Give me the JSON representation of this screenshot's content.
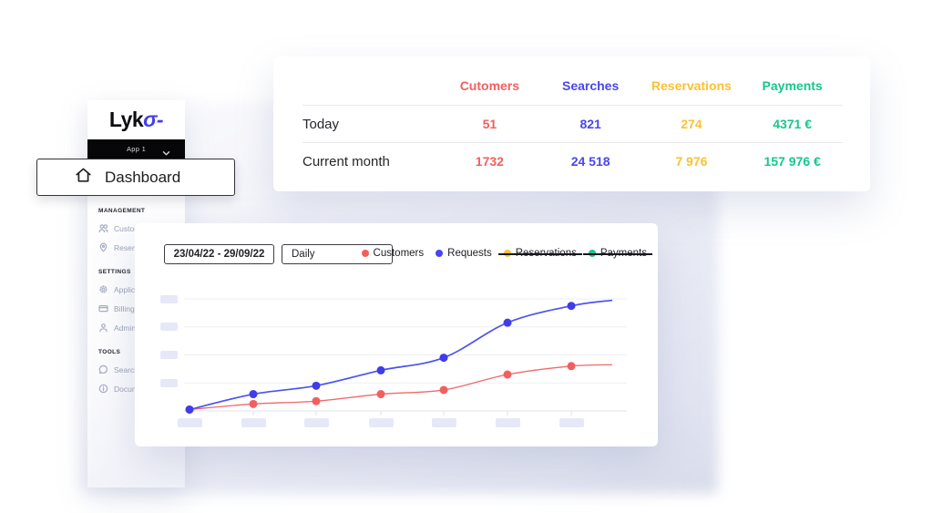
{
  "brand": {
    "name": "Lyko",
    "logo_prefix": "Lyk",
    "logo_accent": "σ-"
  },
  "app_selector": {
    "label": "App 1",
    "icon": "chevron-down-icon"
  },
  "dashboard_menu": {
    "label": "Dashboard",
    "icon": "home-icon"
  },
  "sidebar": {
    "sections": [
      {
        "header": "MANAGEMENT",
        "items": [
          {
            "label": "Customers",
            "icon": "users-icon"
          },
          {
            "label": "Reservations",
            "icon": "pin-icon"
          }
        ]
      },
      {
        "header": "SETTINGS",
        "items": [
          {
            "label": "Application",
            "icon": "gear-icon"
          },
          {
            "label": "Billing",
            "icon": "card-icon"
          },
          {
            "label": "Administration",
            "icon": "user-icon"
          }
        ]
      },
      {
        "header": "TOOLS",
        "items": [
          {
            "label": "Search",
            "icon": "chat-icon"
          },
          {
            "label": "Documentation",
            "icon": "info-icon"
          }
        ]
      }
    ]
  },
  "stats_card": {
    "columns": [
      {
        "label": "Cutomers",
        "color": "#f25f5f"
      },
      {
        "label": "Searches",
        "color": "#4946ef"
      },
      {
        "label": "Reservations",
        "color": "#fdc033"
      },
      {
        "label": "Payments",
        "color": "#17c689"
      }
    ],
    "rows": [
      {
        "label": "Today",
        "values": [
          "51",
          "821",
          "274",
          "4371 €"
        ]
      },
      {
        "label": "Current month",
        "values": [
          "1732",
          "24 518",
          "7 976",
          "157 976 €"
        ]
      }
    ]
  },
  "chart_card": {
    "date_range": "23/04/22 - 29/09/22",
    "granularity": "Daily",
    "legend": [
      {
        "label": "Customers",
        "color": "#f25f5f",
        "struck": false
      },
      {
        "label": "Requests",
        "color": "#4946ef",
        "struck": false
      },
      {
        "label": "Reservations",
        "color": "#fdc033",
        "struck": true
      },
      {
        "label": "Payments",
        "color": "#17c689",
        "struck": true
      }
    ]
  },
  "chart_data": {
    "type": "line",
    "title": "",
    "x": [
      1,
      2,
      3,
      4,
      5,
      6,
      7
    ],
    "x_tick_labels": [
      "",
      "",
      "",
      "",
      "",
      "",
      ""
    ],
    "y_tick_labels": [
      "",
      "",
      "",
      ""
    ],
    "note": "axis tick labels are blurred placeholder boxes in the screenshot; series values are expressed in y-gridline units (baseline = 0, top gridline = 4)",
    "ylim": [
      0,
      4.2
    ],
    "grid": true,
    "legend_position": "top-right",
    "series": [
      {
        "name": "Customers",
        "color": "#f0696a",
        "dot_color": "#f25f5f",
        "values": [
          0.05,
          0.25,
          0.35,
          0.6,
          0.75,
          1.3,
          1.6
        ],
        "trail_value": 1.65,
        "visible": true
      },
      {
        "name": "Requests",
        "color": "#4b52ee",
        "dot_color": "#3f3cea",
        "values": [
          0.05,
          0.6,
          0.9,
          1.45,
          1.9,
          3.15,
          3.75
        ],
        "trail_value": 3.95,
        "visible": true
      },
      {
        "name": "Reservations",
        "color": "#fdc033",
        "values": [],
        "visible": false
      },
      {
        "name": "Payments",
        "color": "#17c689",
        "values": [],
        "visible": false
      }
    ]
  }
}
